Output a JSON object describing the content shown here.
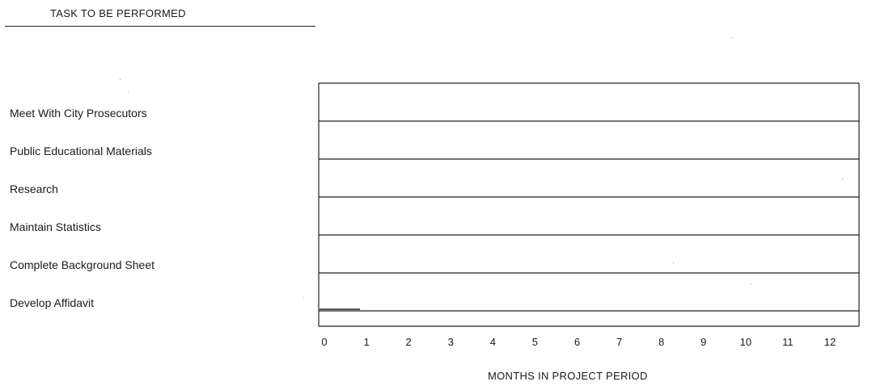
{
  "header": {
    "title": "TASK TO BE PERFORMED"
  },
  "chart_data": {
    "type": "gantt",
    "tasks": [
      "Meet With City Prosecutors",
      "Public Educational Materials",
      "Research",
      "Maintain Statistics",
      "Complete Background Sheet",
      "Develop Affidavit"
    ],
    "xlabel": "MONTHS IN PROJECT PERIOD",
    "ticks": [
      "0",
      "1",
      "2",
      "3",
      "4",
      "5",
      "6",
      "7",
      "8",
      "9",
      "10",
      "11",
      "12"
    ],
    "xlim": [
      0,
      12
    ],
    "bars": [
      {
        "task": "Develop Affidavit",
        "start": 0,
        "end": 1
      }
    ],
    "grid": true
  }
}
